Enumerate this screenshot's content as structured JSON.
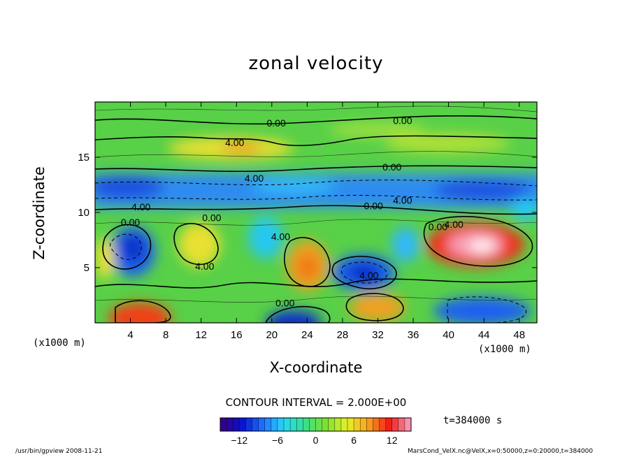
{
  "title": "zonal velocity",
  "chart_data": {
    "type": "heatmap",
    "title": "zonal velocity",
    "xlabel": "X-coordinate",
    "ylabel": "Z-coordinate",
    "x_unit_label": "(x1000 m)",
    "x_ticks": [
      4,
      8,
      12,
      16,
      20,
      24,
      28,
      32,
      36,
      40,
      44,
      48
    ],
    "y_ticks": [
      5,
      10,
      15
    ],
    "xlim": [
      0,
      50
    ],
    "ylim": [
      0,
      20
    ],
    "contour_labels": [
      {
        "text": "0.00",
        "x": 20.5,
        "y": 17.8
      },
      {
        "text": "0.00",
        "x": 34.8,
        "y": 18.0
      },
      {
        "text": "4.00",
        "x": 15.8,
        "y": 16.0
      },
      {
        "text": "4.00",
        "x": 18.0,
        "y": 12.8
      },
      {
        "text": "0.00",
        "x": 33.6,
        "y": 13.8
      },
      {
        "text": "4.00",
        "x": 5.2,
        "y": 10.2
      },
      {
        "text": "0.00",
        "x": 31.5,
        "y": 10.3
      },
      {
        "text": "4.00",
        "x": 34.8,
        "y": 10.8
      },
      {
        "text": "0.00",
        "x": 4.0,
        "y": 8.8
      },
      {
        "text": "0.00",
        "x": 13.2,
        "y": 9.2
      },
      {
        "text": "4.00",
        "x": 21.0,
        "y": 7.5
      },
      {
        "text": "0.00",
        "x": 38.8,
        "y": 8.4
      },
      {
        "text": "4.00",
        "x": 40.6,
        "y": 8.6
      },
      {
        "text": "4.00",
        "x": 12.4,
        "y": 4.8
      },
      {
        "text": "4.00",
        "x": 31.0,
        "y": 4.0
      },
      {
        "text": "0.00",
        "x": 21.5,
        "y": 1.5
      }
    ],
    "colorbar": {
      "ticks": [
        -12,
        -6,
        0,
        6,
        12
      ],
      "range": [
        -15,
        15
      ],
      "colors": [
        "#3a0080",
        "#0a10c8",
        "#1e70ff",
        "#28d8f8",
        "#38e088",
        "#80e030",
        "#e8f028",
        "#f8a020",
        "#f01818",
        "#f8a8c8"
      ]
    },
    "contour_interval": "CONTOUR INTERVAL = 2.000E+00",
    "time": "t=384000 s"
  },
  "footer": {
    "left": "/usr/bin/gpview  2008-11-21",
    "right": "MarsCond_VelX.nc@VelX,x=0:50000,z=0:20000,t=384000"
  }
}
